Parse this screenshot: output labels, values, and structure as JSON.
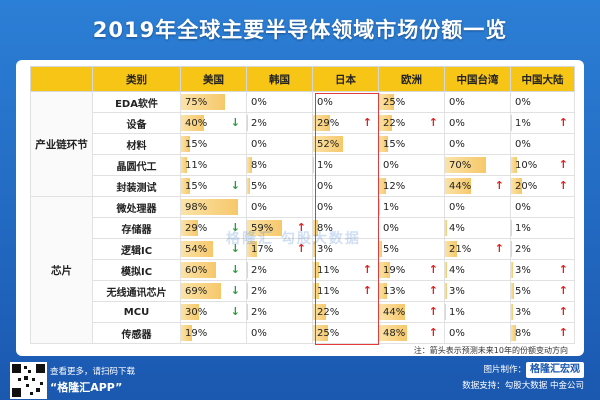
{
  "title": "2019年全球主要半导体领域市场份额一览",
  "headers": [
    "类别",
    "美国",
    "韩国",
    "日本",
    "欧洲",
    "中国台湾",
    "中国大陆"
  ],
  "groups": [
    {
      "label": "产业链环节",
      "start": 0,
      "span": 5
    },
    {
      "label": "芯片",
      "start": 5,
      "span": 7
    }
  ],
  "rows": [
    {
      "cat": "EDA软件",
      "cells": [
        {
          "v": "75%",
          "p": 75
        },
        {
          "v": "0%",
          "p": 0
        },
        {
          "v": "0%",
          "p": 0
        },
        {
          "v": "25%",
          "p": 25
        },
        {
          "v": "0%",
          "p": 0
        },
        {
          "v": "0%",
          "p": 0
        }
      ]
    },
    {
      "cat": "设备",
      "cells": [
        {
          "v": "40%",
          "p": 40,
          "a": "down"
        },
        {
          "v": "2%",
          "p": 2
        },
        {
          "v": "29%",
          "p": 29,
          "a": "up"
        },
        {
          "v": "22%",
          "p": 22,
          "a": "up"
        },
        {
          "v": "0%",
          "p": 0
        },
        {
          "v": "1%",
          "p": 1,
          "a": "up"
        }
      ]
    },
    {
      "cat": "材料",
      "cells": [
        {
          "v": "15%",
          "p": 15
        },
        {
          "v": "0%",
          "p": 0
        },
        {
          "v": "52%",
          "p": 52
        },
        {
          "v": "15%",
          "p": 15
        },
        {
          "v": "0%",
          "p": 0
        },
        {
          "v": "0%",
          "p": 0
        }
      ]
    },
    {
      "cat": "晶圆代工",
      "cells": [
        {
          "v": "11%",
          "p": 11
        },
        {
          "v": "8%",
          "p": 8
        },
        {
          "v": "1%",
          "p": 1
        },
        {
          "v": "0%",
          "p": 0
        },
        {
          "v": "70%",
          "p": 70
        },
        {
          "v": "10%",
          "p": 10,
          "a": "up"
        }
      ]
    },
    {
      "cat": "封装测试",
      "cells": [
        {
          "v": "15%",
          "p": 15,
          "a": "down"
        },
        {
          "v": "5%",
          "p": 5
        },
        {
          "v": "0%",
          "p": 0
        },
        {
          "v": "12%",
          "p": 12
        },
        {
          "v": "44%",
          "p": 44,
          "a": "up"
        },
        {
          "v": "20%",
          "p": 20,
          "a": "up"
        }
      ]
    },
    {
      "cat": "微处理器",
      "cells": [
        {
          "v": "98%",
          "p": 98
        },
        {
          "v": "0%",
          "p": 0
        },
        {
          "v": "0%",
          "p": 0
        },
        {
          "v": "1%",
          "p": 1
        },
        {
          "v": "0%",
          "p": 0
        },
        {
          "v": "0%",
          "p": 0
        }
      ]
    },
    {
      "cat": "存储器",
      "cells": [
        {
          "v": "29%",
          "p": 29,
          "a": "down"
        },
        {
          "v": "59%",
          "p": 59,
          "a": "up"
        },
        {
          "v": "8%",
          "p": 8
        },
        {
          "v": "0%",
          "p": 0
        },
        {
          "v": "4%",
          "p": 4
        },
        {
          "v": "1%",
          "p": 1
        }
      ]
    },
    {
      "cat": "逻辑IC",
      "cells": [
        {
          "v": "54%",
          "p": 54,
          "a": "down"
        },
        {
          "v": "17%",
          "p": 17,
          "a": "up"
        },
        {
          "v": "3%",
          "p": 3
        },
        {
          "v": "5%",
          "p": 5
        },
        {
          "v": "21%",
          "p": 21,
          "a": "up"
        },
        {
          "v": "2%",
          "p": 2
        }
      ]
    },
    {
      "cat": "模拟IC",
      "cells": [
        {
          "v": "60%",
          "p": 60,
          "a": "down"
        },
        {
          "v": "2%",
          "p": 2
        },
        {
          "v": "11%",
          "p": 11,
          "a": "up"
        },
        {
          "v": "19%",
          "p": 19,
          "a": "up"
        },
        {
          "v": "4%",
          "p": 4
        },
        {
          "v": "3%",
          "p": 3,
          "a": "up"
        }
      ]
    },
    {
      "cat": "无线通讯芯片",
      "cells": [
        {
          "v": "69%",
          "p": 69,
          "a": "down"
        },
        {
          "v": "2%",
          "p": 2
        },
        {
          "v": "11%",
          "p": 11,
          "a": "up"
        },
        {
          "v": "13%",
          "p": 13,
          "a": "up"
        },
        {
          "v": "3%",
          "p": 3
        },
        {
          "v": "5%",
          "p": 5,
          "a": "up"
        }
      ]
    },
    {
      "cat": "MCU",
      "cells": [
        {
          "v": "30%",
          "p": 30,
          "a": "down"
        },
        {
          "v": "2%",
          "p": 2
        },
        {
          "v": "22%",
          "p": 22
        },
        {
          "v": "44%",
          "p": 44,
          "a": "up"
        },
        {
          "v": "1%",
          "p": 1
        },
        {
          "v": "3%",
          "p": 3,
          "a": "up"
        }
      ]
    },
    {
      "cat": "传感器",
      "cells": [
        {
          "v": "19%",
          "p": 19
        },
        {
          "v": "0%",
          "p": 0
        },
        {
          "v": "25%",
          "p": 25
        },
        {
          "v": "48%",
          "p": 48,
          "a": "up"
        },
        {
          "v": "0%",
          "p": 0
        },
        {
          "v": "8%",
          "p": 8,
          "a": "up"
        }
      ]
    }
  ],
  "note": "注：箭头表示预测未来10年的份额变动方向",
  "watermark": "格隆汇  勾股大数据",
  "cta": {
    "line1": "查看更多，请扫码下载",
    "app": "“格隆汇APP”"
  },
  "credits": {
    "made_by_label": "图片制作：",
    "brand": "格隆汇宏观",
    "source": "数据支持：勾股大数据   中金公司"
  },
  "colors": {
    "header": "#f7c515",
    "up": "#e02020",
    "down": "#2a9a3a",
    "bar": "#f6c86a",
    "background": "#1e64b8"
  }
}
